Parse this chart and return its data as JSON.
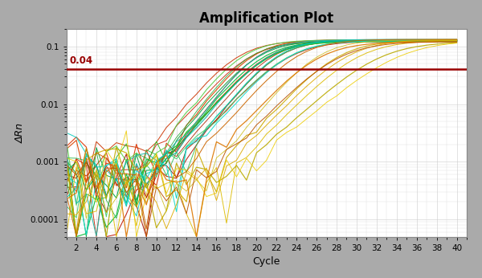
{
  "title": "Amplification Plot",
  "xlabel": "Cycle",
  "ylabel": "ΔRn",
  "threshold": 0.04,
  "threshold_color": "#990000",
  "threshold_label": "0.04",
  "xlim": [
    1,
    41
  ],
  "ylim_log": [
    5e-05,
    0.2
  ],
  "xticks": [
    2,
    4,
    6,
    8,
    10,
    12,
    14,
    16,
    18,
    20,
    22,
    24,
    26,
    28,
    30,
    32,
    34,
    36,
    38,
    40
  ],
  "yticks": [
    0.0001,
    0.001,
    0.01,
    0.1
  ],
  "ytick_labels": [
    "0.0001",
    "0.001",
    "0.01",
    "0.1"
  ],
  "bg_color": "#f0f0f0",
  "plot_bg": "#ffffff",
  "grid_color": "#cccccc",
  "border_color": "#555555",
  "title_fontsize": 12,
  "label_fontsize": 9,
  "tick_fontsize": 7.5,
  "colors": [
    "#cc2200",
    "#bb1100",
    "#dd3300",
    "#aa1100",
    "#cc3300",
    "#bb2200",
    "#dd4400",
    "#aa2200",
    "#009933",
    "#00aa44",
    "#33bb55",
    "#22aa33",
    "#44cc66",
    "#00bb33",
    "#55cc44",
    "#33bb22",
    "#00bbaa",
    "#00ccbb",
    "#11ddcc",
    "#22bbaa",
    "#ccaa00",
    "#ddbb00",
    "#bbaa00",
    "#ccbb11",
    "#eecc00",
    "#ddaa00",
    "#cc6600",
    "#dd7700",
    "#bb5500"
  ],
  "midpoints": [
    19,
    20,
    21,
    22,
    18,
    23,
    19.5,
    21.5,
    20,
    21,
    22,
    19,
    23,
    20.5,
    18.5,
    21,
    21,
    22,
    23,
    20,
    28,
    30,
    32,
    26,
    34,
    29,
    24,
    26,
    28
  ],
  "slopes": [
    0.5,
    0.55,
    0.48,
    0.52,
    0.5,
    0.45,
    0.53,
    0.5,
    0.5,
    0.48,
    0.52,
    0.55,
    0.45,
    0.5,
    0.53,
    0.48,
    0.5,
    0.52,
    0.48,
    0.55,
    0.45,
    0.42,
    0.38,
    0.5,
    0.35,
    0.43,
    0.48,
    0.45,
    0.42
  ],
  "plateau": 0.13
}
